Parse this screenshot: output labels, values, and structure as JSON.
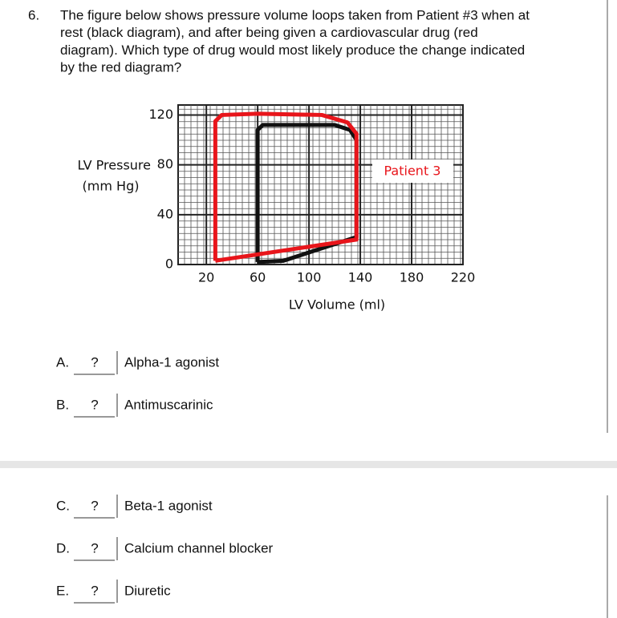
{
  "question": {
    "number": "6.",
    "lines": [
      "The figure below shows pressure volume loops taken from Patient #3 when at",
      "rest (black diagram), and after being given a cardiovascular drug (red",
      "diagram). Which type of drug would most likely produce the change indicated",
      "by the red diagram?"
    ]
  },
  "figure": {
    "type": "line",
    "ylabel": [
      "LV Pressure",
      "(mm Hg)"
    ],
    "xlabel": "LV Volume (ml)",
    "annotation": "Patient 3",
    "xlim": [
      -2,
      220
    ],
    "ylim": [
      0,
      128
    ],
    "xticks": [
      20,
      60,
      100,
      140,
      180,
      220
    ],
    "yticks": [
      0,
      40,
      80,
      120
    ],
    "series": [
      {
        "color": "#111111",
        "x": [
          60,
          60,
          64,
          120,
          132,
          137,
          137,
          80,
          60
        ],
        "y": [
          2,
          108,
          112,
          112,
          108,
          100,
          22,
          3,
          2
        ]
      },
      {
        "color": "#e8151b",
        "x": [
          27,
          27,
          32,
          60,
          110,
          130,
          137,
          137,
          27
        ],
        "y": [
          3,
          115,
          120,
          121,
          120,
          114,
          105,
          20,
          3
        ]
      }
    ]
  },
  "options": [
    {
      "letter": "A.",
      "answer": "?",
      "text": "Alpha-1 agonist"
    },
    {
      "letter": "B.",
      "answer": "?",
      "text": "Antimuscarinic"
    },
    {
      "letter": "C.",
      "answer": "?",
      "text": "Beta-1 agonist"
    },
    {
      "letter": "D.",
      "answer": "?",
      "text": "Calcium channel blocker"
    },
    {
      "letter": "E.",
      "answer": "?",
      "text": "Diuretic"
    }
  ]
}
